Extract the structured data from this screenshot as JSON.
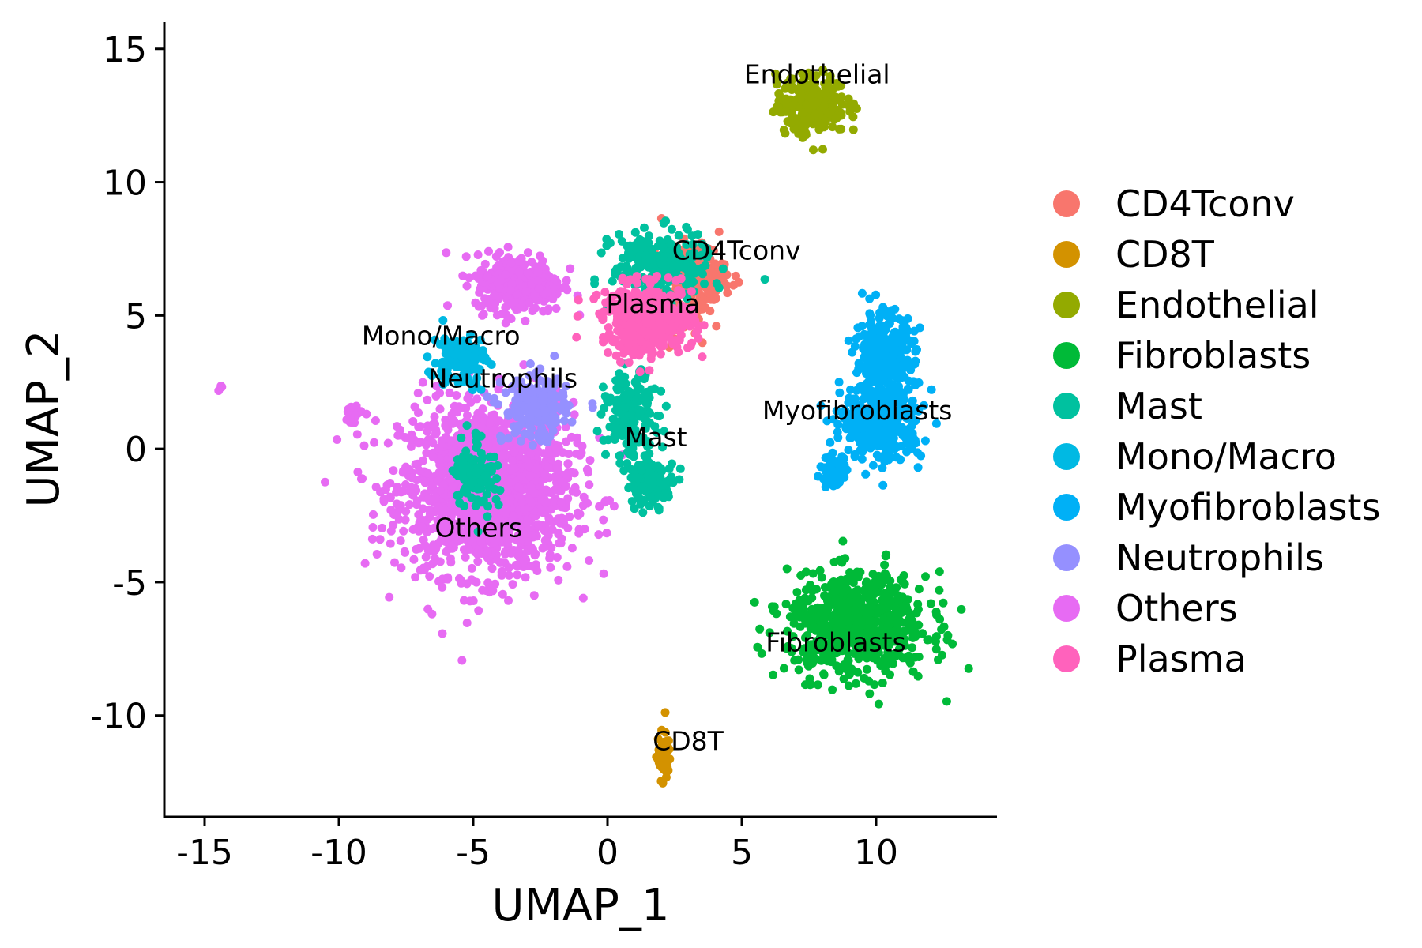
{
  "chart_data": {
    "type": "scatter",
    "title": "",
    "xlabel": "UMAP_1",
    "ylabel": "UMAP_2",
    "xlim": [
      -16.5,
      14.5
    ],
    "ylim": [
      -13.8,
      16.0
    ],
    "x_ticks": [
      -15,
      -10,
      -5,
      0,
      5,
      10
    ],
    "y_ticks": [
      -10,
      -5,
      0,
      5,
      10,
      15
    ],
    "x_tick_labels": [
      "-15",
      "-10",
      "-5",
      "0",
      "5",
      "10"
    ],
    "y_tick_labels": [
      "-10",
      "-5",
      "0",
      "5",
      "10",
      "15"
    ],
    "grid": false,
    "legend_position": "right",
    "series": [
      {
        "name": "CD4Tconv",
        "color": "#F8766D",
        "label_pos": [
          4.8,
          7.1
        ],
        "cloud": [
          [
            3.2,
            6.5,
            1.2,
            1.2,
            200
          ],
          [
            2.4,
            5.0,
            1.0,
            0.8,
            80
          ]
        ]
      },
      {
        "name": "CD8T",
        "color": "#D39200",
        "label_pos": [
          3.0,
          -11.3
        ],
        "cloud": [
          [
            2.1,
            -11.5,
            0.25,
            0.9,
            60
          ]
        ]
      },
      {
        "name": "Endothelial",
        "color": "#93AA00",
        "label_pos": [
          7.8,
          13.7
        ],
        "cloud": [
          [
            7.6,
            12.9,
            1.3,
            1.1,
            260
          ]
        ]
      },
      {
        "name": "Fibroblasts",
        "color": "#00BA38",
        "label_pos": [
          8.5,
          -7.6
        ],
        "cloud": [
          [
            9.3,
            -6.6,
            2.6,
            1.9,
            700
          ]
        ]
      },
      {
        "name": "Mast",
        "color": "#00C19F",
        "label_pos": [
          1.8,
          0.1
        ],
        "cloud": [
          [
            2.0,
            6.9,
            1.8,
            1.2,
            250
          ],
          [
            0.9,
            1.2,
            1.0,
            1.6,
            180
          ],
          [
            1.6,
            -1.3,
            0.9,
            0.8,
            120
          ],
          [
            -4.9,
            -0.9,
            0.8,
            1.5,
            110
          ]
        ]
      },
      {
        "name": "Mono/Macro",
        "color": "#00B9E3",
        "label_pos": [
          -6.2,
          3.9
        ],
        "cloud": [
          [
            -5.5,
            3.3,
            1.0,
            1.0,
            120
          ]
        ]
      },
      {
        "name": "Myofibroblasts",
        "color": "#00B0F6",
        "label_pos": [
          9.3,
          1.1
        ],
        "cloud": [
          [
            10.3,
            3.4,
            1.1,
            1.7,
            320
          ],
          [
            10.2,
            1.0,
            1.5,
            1.4,
            320
          ],
          [
            8.4,
            -0.9,
            0.5,
            0.6,
            50
          ]
        ]
      },
      {
        "name": "Neutrophils",
        "color": "#9590FF",
        "label_pos": [
          -3.9,
          2.3
        ],
        "cloud": [
          [
            -2.7,
            1.5,
            1.2,
            1.2,
            220
          ]
        ]
      },
      {
        "name": "Others",
        "color": "#E76BF3",
        "label_pos": [
          -4.8,
          -3.3
        ],
        "cloud": [
          [
            -4.5,
            -1.5,
            3.2,
            3.2,
            1600
          ],
          [
            -3.3,
            6.2,
            1.6,
            1.1,
            320
          ],
          [
            -9.5,
            1.3,
            0.5,
            0.4,
            25
          ],
          [
            -14.4,
            2.3,
            0.1,
            0.1,
            3
          ]
        ]
      },
      {
        "name": "Plasma",
        "color": "#FF62BC",
        "label_pos": [
          1.7,
          5.1
        ],
        "cloud": [
          [
            1.5,
            4.8,
            1.7,
            1.3,
            420
          ]
        ]
      }
    ]
  }
}
